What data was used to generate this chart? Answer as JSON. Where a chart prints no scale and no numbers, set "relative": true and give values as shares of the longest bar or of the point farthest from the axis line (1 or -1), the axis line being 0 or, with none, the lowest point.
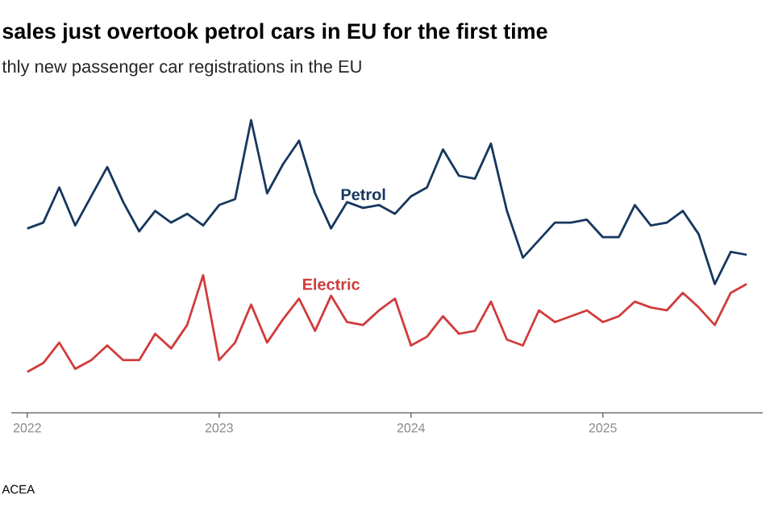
{
  "chart_data": {
    "type": "line",
    "title": "sales just overtook petrol cars in EU for the first time",
    "subtitle": "thly new passenger car registrations in the EU",
    "relative": true,
    "legend": false,
    "marker": "none",
    "line_style": "solid",
    "x": [
      "2022-01",
      "2022-02",
      "2022-03",
      "2022-04",
      "2022-05",
      "2022-06",
      "2022-07",
      "2022-08",
      "2022-09",
      "2022-10",
      "2022-11",
      "2022-12",
      "2023-01",
      "2023-02",
      "2023-03",
      "2023-04",
      "2023-05",
      "2023-06",
      "2023-07",
      "2023-08",
      "2023-09",
      "2023-10",
      "2023-11",
      "2023-12",
      "2024-01",
      "2024-02",
      "2024-03",
      "2024-04",
      "2024-05",
      "2024-06",
      "2024-07",
      "2024-08",
      "2024-09",
      "2024-10",
      "2024-11",
      "2024-12",
      "2025-01",
      "2025-02",
      "2025-03",
      "2025-04",
      "2025-05",
      "2025-06",
      "2025-07",
      "2025-08",
      "2025-09",
      "2025-10"
    ],
    "xlim": [
      "2021-12",
      "2025-11"
    ],
    "xticks": [
      "2022",
      "2023",
      "2024",
      "2025"
    ],
    "series": [
      {
        "name": "Petrol",
        "color": "#17375e",
        "values": [
          0.63,
          0.65,
          0.77,
          0.64,
          0.74,
          0.84,
          0.72,
          0.62,
          0.69,
          0.65,
          0.68,
          0.64,
          0.71,
          0.73,
          1,
          0.75,
          0.85,
          0.93,
          0.75,
          0.63,
          0.72,
          0.7,
          0.71,
          0.68,
          0.74,
          0.77,
          0.9,
          0.81,
          0.8,
          0.92,
          0.69,
          0.53,
          0.59,
          0.65,
          0.65,
          0.66,
          0.6,
          0.6,
          0.71,
          0.64,
          0.65,
          0.69,
          0.61,
          0.44,
          0.55,
          0.54
        ]
      },
      {
        "name": "Electric",
        "color": "#d13c3c",
        "values": [
          0.14,
          0.17,
          0.24,
          0.15,
          0.18,
          0.23,
          0.18,
          0.18,
          0.27,
          0.22,
          0.3,
          0.47,
          0.18,
          0.24,
          0.37,
          0.24,
          0.32,
          0.39,
          0.28,
          0.4,
          0.31,
          0.3,
          0.35,
          0.39,
          0.23,
          0.26,
          0.33,
          0.27,
          0.28,
          0.38,
          0.25,
          0.23,
          0.35,
          0.31,
          0.33,
          0.35,
          0.31,
          0.33,
          0.38,
          0.36,
          0.35,
          0.41,
          0.36,
          0.3,
          0.41,
          0.44
        ]
      }
    ],
    "annotations": [
      "ACEA"
    ]
  }
}
